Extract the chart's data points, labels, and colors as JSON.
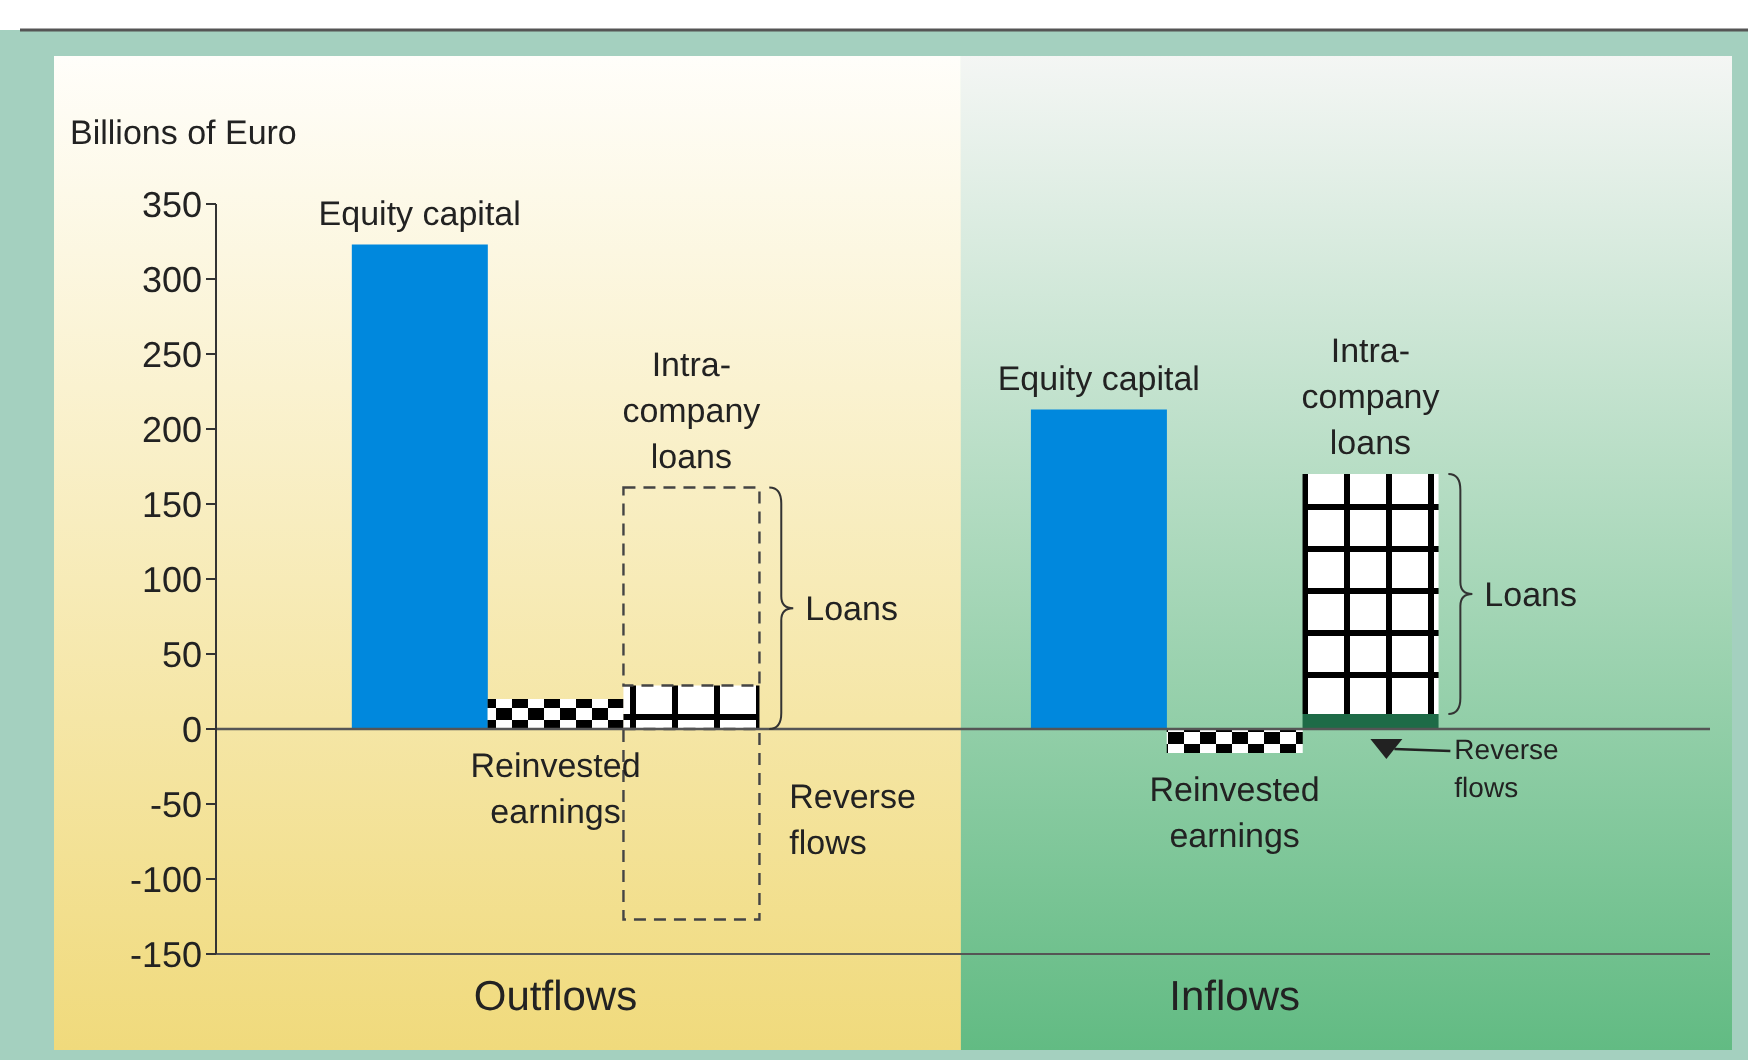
{
  "chart_data": {
    "type": "bar",
    "ylabel": "Billions of Euro",
    "stacked": true,
    "categories": [
      null,
      null,
      null,
      null,
      null,
      null,
      null,
      null,
      null,
      null,
      null
    ],
    "series": [
      {
        "colors": [
          null,
          "#0088dd",
          "#000000",
          "#000000",
          null,
          null,
          "#0088dd",
          "#000000",
          null,
          null,
          null
        ],
        "values": [
          null,
          323,
          20,
          29,
          null,
          null,
          213,
          -16,
          null,
          null,
          null
        ]
      },
      {
        "color": "#1e6b47",
        "values": [
          null,
          null,
          null,
          null,
          null,
          null,
          null,
          null,
          10,
          null,
          null
        ]
      },
      {
        "color": "#000000",
        "values": [
          null,
          null,
          null,
          null,
          null,
          null,
          null,
          null,
          160,
          null,
          null
        ]
      },
      {
        "color": "#444444",
        "values": [
          null,
          null,
          null,
          132,
          null,
          null,
          null,
          null,
          null,
          null,
          null
        ],
        "line_style": "dashed"
      },
      {
        "color": "#444444",
        "values": [
          null,
          null,
          null,
          -127,
          null,
          null,
          null,
          null,
          null,
          null,
          null
        ],
        "line_style": "dashed"
      }
    ],
    "annotations": [
      "Equity capital",
      "Reinvested earnings",
      "Intra-company loans",
      "Loans",
      "Reverse flows",
      "Outflows",
      "Equity capital",
      "Reinvested earnings",
      "Intra-company loans",
      "Loans",
      "Reverse flows",
      "Inflows"
    ],
    "ylim": [
      -150,
      350
    ],
    "yticks": [
      -150,
      -100,
      -50,
      0,
      50,
      100,
      150,
      200,
      250,
      300,
      350
    ]
  }
}
